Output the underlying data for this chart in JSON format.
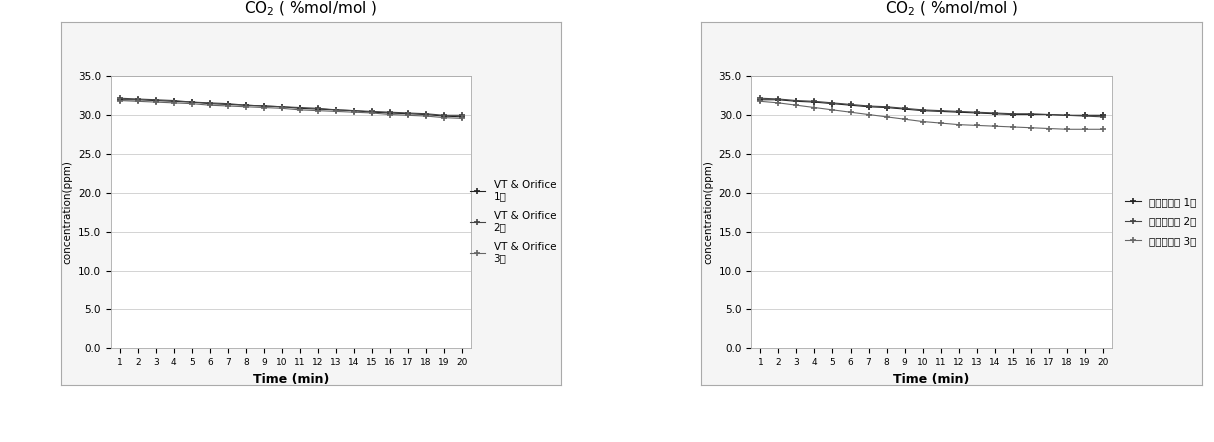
{
  "x": [
    1,
    2,
    3,
    4,
    5,
    6,
    7,
    8,
    9,
    10,
    11,
    12,
    13,
    14,
    15,
    16,
    17,
    18,
    19,
    20
  ],
  "chart1": {
    "title": "CO$_2$ ( %mol/mol )",
    "series1": {
      "label": "VT & Orifice\n1단",
      "marker": "+",
      "color": "#222222",
      "values": [
        32.0,
        32.0,
        31.9,
        31.8,
        31.7,
        31.5,
        31.4,
        31.3,
        31.2,
        31.1,
        30.9,
        30.8,
        30.7,
        30.6,
        30.4,
        30.3,
        30.2,
        30.1,
        29.9,
        29.8
      ]
    },
    "series2": {
      "label": "VT & Orifice\n2단",
      "marker": "+",
      "color": "#444444",
      "values": [
        32.2,
        32.1,
        32.0,
        31.9,
        31.7,
        31.6,
        31.5,
        31.3,
        31.2,
        31.1,
        31.0,
        30.9,
        30.7,
        30.6,
        30.5,
        30.4,
        30.3,
        30.2,
        30.0,
        30.0
      ]
    },
    "series3": {
      "label": "VT & Orifice\n3단",
      "marker": "+",
      "color": "#666666",
      "values": [
        31.9,
        31.8,
        31.7,
        31.6,
        31.5,
        31.3,
        31.2,
        31.1,
        31.0,
        30.9,
        30.7,
        30.6,
        30.5,
        30.4,
        30.3,
        30.1,
        30.0,
        29.9,
        29.7,
        29.6
      ]
    },
    "ylabel": "concentration(ppm)",
    "xlabel": "Time (min)",
    "ylim": [
      0.0,
      35.0
    ],
    "yticks": [
      0.0,
      5.0,
      10.0,
      15.0,
      20.0,
      25.0,
      30.0,
      35.0
    ]
  },
  "chart2": {
    "title": "CO$_2$ ( %mol/mol )",
    "series1": {
      "label": "다단흥수탑 1단",
      "marker": "+",
      "color": "#222222",
      "values": [
        32.0,
        32.0,
        31.8,
        31.7,
        31.5,
        31.3,
        31.1,
        31.0,
        30.8,
        30.6,
        30.5,
        30.4,
        30.3,
        30.2,
        30.1,
        30.1,
        30.1,
        30.0,
        30.0,
        30.0
      ]
    },
    "series2": {
      "label": "다단흥수탑 2단",
      "marker": "+",
      "color": "#444444",
      "values": [
        32.2,
        32.1,
        31.9,
        31.8,
        31.6,
        31.4,
        31.2,
        31.1,
        30.9,
        30.7,
        30.6,
        30.5,
        30.4,
        30.3,
        30.2,
        30.2,
        30.1,
        30.0,
        29.9,
        29.8
      ]
    },
    "series3": {
      "label": "다단흥수탑 3단",
      "marker": "+",
      "color": "#666666",
      "values": [
        31.8,
        31.6,
        31.3,
        31.0,
        30.7,
        30.4,
        30.1,
        29.8,
        29.5,
        29.2,
        29.0,
        28.8,
        28.7,
        28.6,
        28.5,
        28.4,
        28.3,
        28.2,
        28.2,
        28.2
      ]
    },
    "ylabel": "concentration(ppm)",
    "xlabel": "Time (min)",
    "ylim": [
      0.0,
      35.0
    ],
    "yticks": [
      0.0,
      5.0,
      10.0,
      15.0,
      20.0,
      25.0,
      30.0,
      35.0
    ]
  },
  "fig_bg_color": "#ffffff",
  "panel_bg_color": "#f5f5f5",
  "plot_bg_color": "#ffffff",
  "grid_color": "#cccccc",
  "border_color": "#aaaaaa"
}
